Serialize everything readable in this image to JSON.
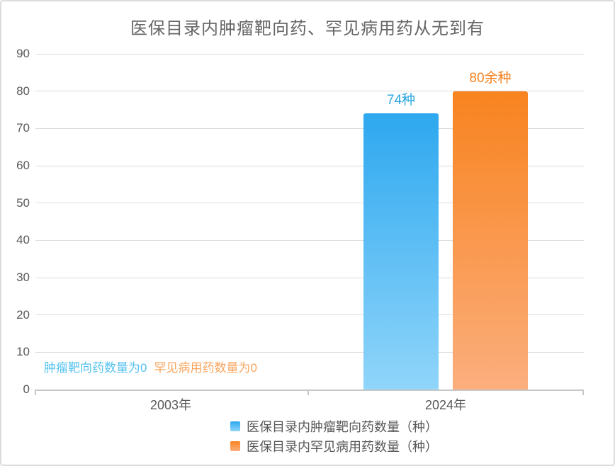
{
  "chart_data": {
    "type": "bar",
    "title": "医保目录内肿瘤靶向药、罕见病用药从无到有",
    "categories": [
      "2003年",
      "2024年"
    ],
    "series": [
      {
        "name": "医保目录内肿瘤靶向药数量（种）",
        "values": [
          0,
          74
        ],
        "value_labels": [
          "",
          "74种"
        ],
        "color_top": "#2EA8EF",
        "color_bottom": "#90D5FA",
        "label_color": "#2BA7E0"
      },
      {
        "name": "医保目录内罕见病用药数量（种）",
        "values": [
          0,
          80
        ],
        "value_labels": [
          "",
          "80余种"
        ],
        "color_top": "#F8831F",
        "color_bottom": "#FBAE7D",
        "label_color": "#F5811F"
      }
    ],
    "annotations": [
      {
        "text": "肿瘤靶向药数量为0",
        "color": "#55C2F0"
      },
      {
        "text": "罕见病用药数量为0",
        "color": "#F9A45C"
      }
    ],
    "ylim": [
      0,
      90
    ],
    "yticks": [
      0,
      10,
      20,
      30,
      40,
      50,
      60,
      70,
      80,
      90
    ],
    "grid": true,
    "legend_position": "bottom"
  }
}
